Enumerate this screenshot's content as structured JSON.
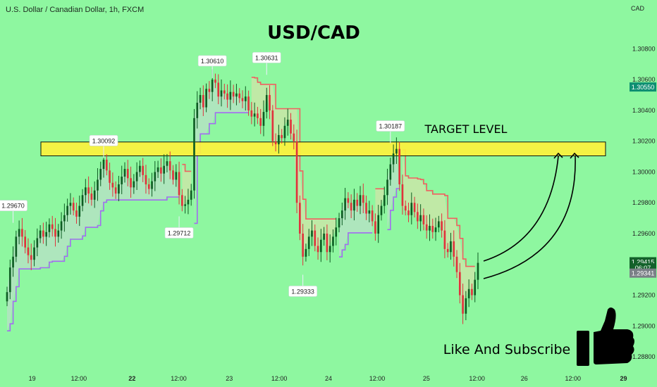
{
  "header": {
    "symbol_label": "U.S. Dollar / Canadian Dollar, 1h, FXCM",
    "currency": "CAD"
  },
  "chart_data": {
    "type": "candlestick",
    "title": "USD/CAD",
    "ylim": [
      1.2875,
      1.3098
    ],
    "y_ticks": [
      "1.30800",
      "1.30600",
      "1.30400",
      "1.30200",
      "1.30000",
      "1.29800",
      "1.29600",
      "1.29400",
      "1.29200",
      "1.29000",
      "1.28800"
    ],
    "x_ticks": [
      {
        "label": "19",
        "bold": false,
        "frac": 0.049
      },
      {
        "label": "12:00",
        "bold": false,
        "frac": 0.12
      },
      {
        "label": "22",
        "bold": true,
        "frac": 0.201
      },
      {
        "label": "12:00",
        "bold": false,
        "frac": 0.272
      },
      {
        "label": "23",
        "bold": false,
        "frac": 0.349
      },
      {
        "label": "12:00",
        "bold": false,
        "frac": 0.425
      },
      {
        "label": "24",
        "bold": false,
        "frac": 0.5
      },
      {
        "label": "12:00",
        "bold": false,
        "frac": 0.574
      },
      {
        "label": "25",
        "bold": false,
        "frac": 0.649
      },
      {
        "label": "12:00",
        "bold": false,
        "frac": 0.726
      },
      {
        "label": "26",
        "bold": false,
        "frac": 0.798
      },
      {
        "label": "12:00",
        "bold": false,
        "frac": 0.872
      },
      {
        "label": "29",
        "bold": true,
        "frac": 0.949
      }
    ],
    "closes": [
      1.2922,
      1.2938,
      1.2945,
      1.2958,
      1.2963,
      1.2958,
      1.2951,
      1.2946,
      1.2943,
      1.2951,
      1.2957,
      1.2962,
      1.2958,
      1.2961,
      1.2966,
      1.2963,
      1.2958,
      1.2962,
      1.2968,
      1.2972,
      1.2978,
      1.298,
      1.2975,
      1.2971,
      1.2978,
      1.2985,
      1.299,
      1.2986,
      1.2982,
      1.2988,
      1.2995,
      1.3002,
      1.3008,
      1.3001,
      1.2993,
      1.299,
      1.2986,
      1.2992,
      1.2997,
      1.3002,
      1.2996,
      1.299,
      1.2994,
      1.3,
      1.3004,
      1.2998,
      1.2992,
      1.2989,
      1.2994,
      1.3,
      1.3003,
      1.2999,
      1.3004,
      1.3007,
      1.3001,
      1.2995,
      1.3,
      1.2985,
      1.2978,
      1.2979,
      1.2982,
      1.2988,
      1.3035,
      1.3045,
      1.305,
      1.3042,
      1.3054,
      1.3052,
      1.306,
      1.3058,
      1.3049,
      1.3053,
      1.3051,
      1.3047,
      1.3052,
      1.3049,
      1.3051,
      1.3048,
      1.3046,
      1.3049,
      1.304,
      1.3036,
      1.3038,
      1.3035,
      1.303,
      1.3039,
      1.305,
      1.304,
      1.302,
      1.3018,
      1.3024,
      1.3022,
      1.303,
      1.3034,
      1.3025,
      1.302,
      1.298,
      1.296,
      1.2945,
      1.295,
      1.2958,
      1.2962,
      1.2952,
      1.2948,
      1.2956,
      1.296,
      1.2948,
      1.2952,
      1.2958,
      1.2964,
      1.297,
      1.2975,
      1.2983,
      1.298,
      1.2975,
      1.2982,
      1.2978,
      1.2985,
      1.298,
      1.2973,
      1.2975,
      1.2968,
      1.296,
      1.2972,
      1.2978,
      1.2985,
      1.2995,
      1.3005,
      1.3012,
      1.3015,
      1.2992,
      1.2978,
      1.2975,
      1.2972,
      1.298,
      1.2974,
      1.2968,
      1.2972,
      1.2966,
      1.2962,
      1.2965,
      1.2961,
      1.2964,
      1.2968,
      1.2962,
      1.295,
      1.2948,
      1.2955,
      1.2945,
      1.2935,
      1.292,
      1.2908,
      1.2918,
      1.2924,
      1.292,
      1.293,
      1.2941
    ],
    "annotations": [
      {
        "label": "1.29670",
        "candle": 2,
        "side": "above",
        "value": 1.2967
      },
      {
        "label": "1.30092",
        "candle": 32,
        "side": "above",
        "value": 1.30092
      },
      {
        "label": "1.29712",
        "candle": 57,
        "side": "below",
        "value": 1.29712
      },
      {
        "label": "1.30610",
        "candle": 68,
        "side": "above",
        "value": 1.3061
      },
      {
        "label": "1.30631",
        "candle": 86,
        "side": "above",
        "value": 1.30631
      },
      {
        "label": "1.29333",
        "candle": 98,
        "side": "below",
        "value": 1.29333
      },
      {
        "label": "1.30187",
        "candle": 127,
        "side": "above",
        "value": 1.30187
      }
    ],
    "target_zone": {
      "label": "TARGET LEVEL",
      "from": 1.30105,
      "to": 1.30195,
      "color": "#fdf23d"
    },
    "price_tags": [
      {
        "label": "1.30550",
        "value": 1.3055,
        "color": "#0e8f72"
      },
      {
        "label": "1.29415",
        "value": 1.29415,
        "color": "#13612a"
      },
      {
        "label": "06:07",
        "value": 1.29375,
        "color": "#13612a"
      },
      {
        "label": "1.29341",
        "value": 1.29341,
        "color": "#7a7f86"
      }
    ],
    "colors": {
      "up": "#0d5c22",
      "down": "#e0323c",
      "support_line": "#a36cf0",
      "resistance_line": "#f06060",
      "support_fill": "#b4e3c2",
      "resistance_fill": "#c9e6a7"
    }
  },
  "cta": {
    "text": "Like And Subscribe",
    "icon": "thumbs-up-icon"
  }
}
